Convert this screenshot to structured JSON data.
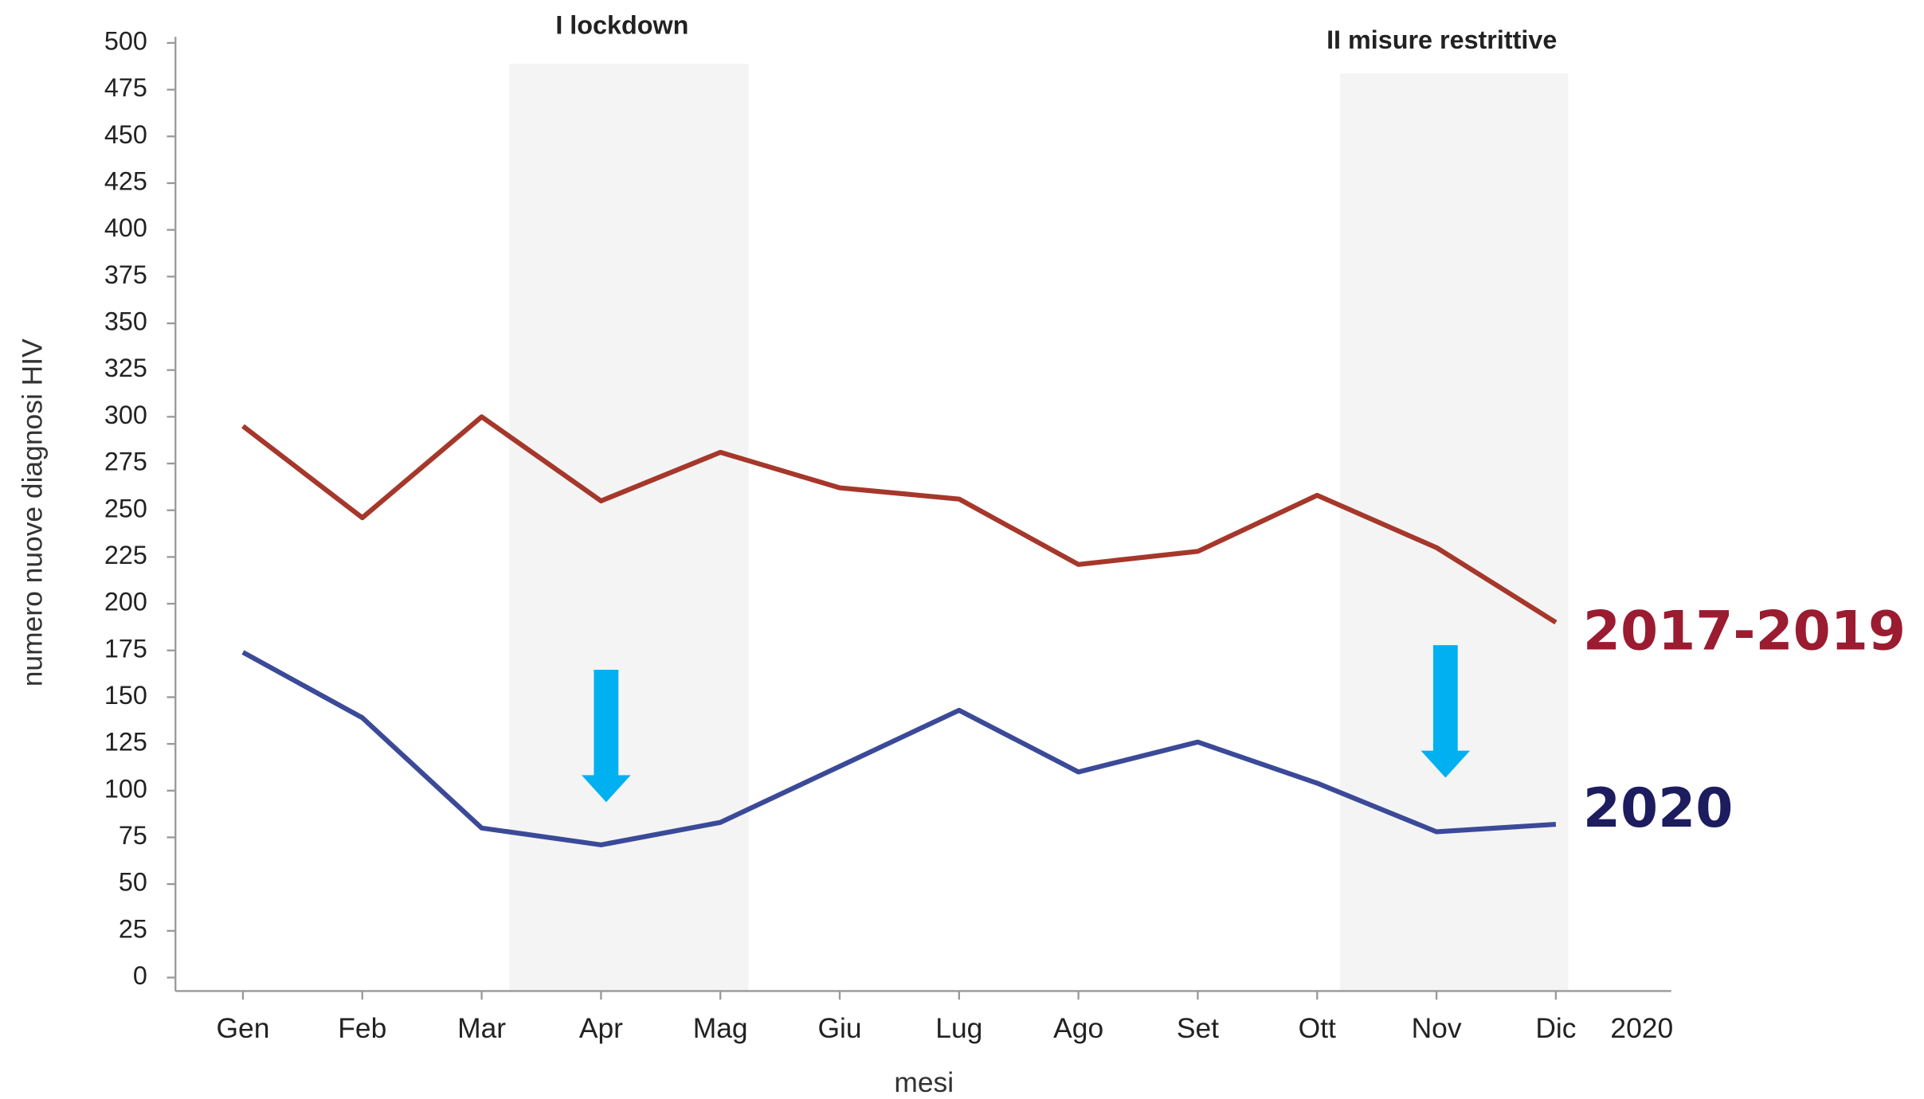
{
  "chart_data": {
    "type": "line",
    "categories": [
      "Gen",
      "Feb",
      "Mar",
      "Apr",
      "Mag",
      "Giu",
      "Lug",
      "Ago",
      "Set",
      "Ott",
      "Nov",
      "Dic"
    ],
    "year_label": "2020",
    "series": [
      {
        "name": "2017-2019",
        "color": "#a6372b",
        "label_color": "#9b1b30",
        "values": [
          295,
          246,
          300,
          255,
          281,
          262,
          256,
          221,
          228,
          258,
          230,
          190
        ]
      },
      {
        "name": "2020",
        "color": "#3b4a98",
        "label_color": "#1c1c5e",
        "values": [
          174,
          139,
          80,
          71,
          83,
          113,
          143,
          110,
          126,
          104,
          78,
          82
        ]
      }
    ],
    "ylim": [
      0,
      500
    ],
    "yticks": [
      0,
      25,
      50,
      75,
      100,
      125,
      150,
      175,
      200,
      225,
      250,
      275,
      300,
      325,
      350,
      375,
      400,
      425,
      450,
      475,
      500
    ],
    "xlabel": "mesi",
    "ylabel": "numero nuove diagnosi HIV",
    "annotations": [
      "I lockdown",
      "II misure restrittive"
    ]
  }
}
